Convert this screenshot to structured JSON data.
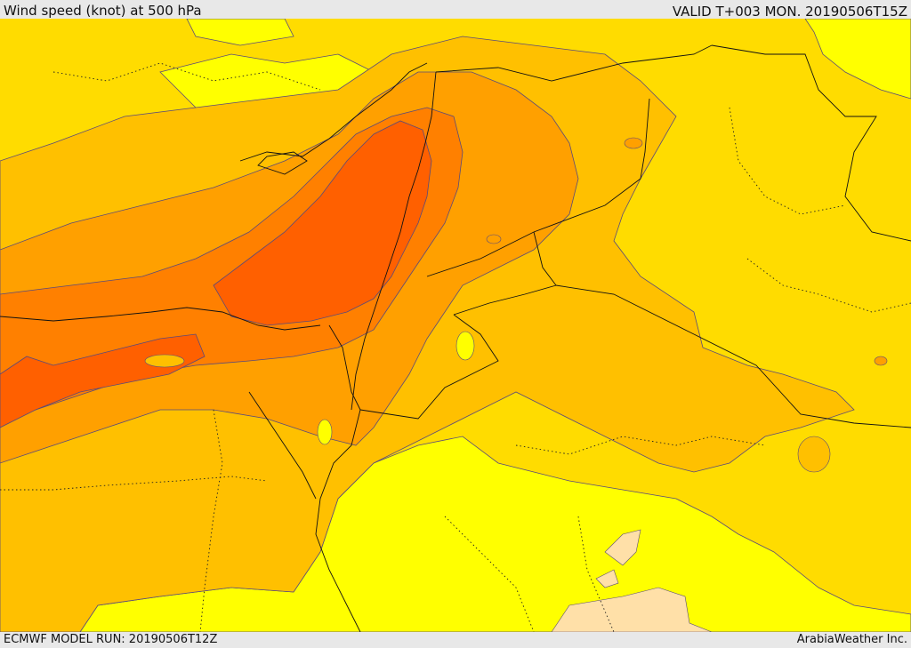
{
  "header": {
    "title": "Wind speed (knot) at 500 hPa",
    "valid": "VALID T+003 MON. 20190506T15Z"
  },
  "footer": {
    "model_run": "ECMWF MODEL RUN: 20190506T12Z",
    "credit": "ArabiaWeather Inc."
  },
  "palette": {
    "very_light": "#ffe0a8",
    "yellow": "#ffff00",
    "gold": "#ffdc00",
    "light_orange": "#ffc000",
    "orange": "#ffa000",
    "dark_orange": "#ff8000",
    "red_orange": "#ff6000",
    "contour": "#5a4a7a",
    "border": "#000000"
  }
}
